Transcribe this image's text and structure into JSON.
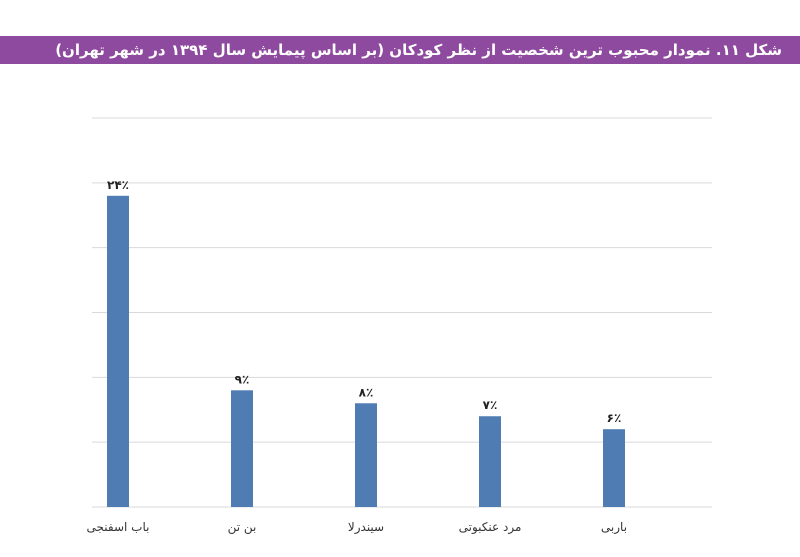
{
  "title": "شکل ۱۱. نمودار محبوب ترین شخصیت از نظر کودکان (بر اساس پیمایش سال ۱۳۹۴ در شهر تهران)",
  "colors": {
    "title_bar": "#8e4a9e",
    "bar": "#4f7cb3",
    "grid": "#d9d9d9"
  },
  "chart_data": {
    "type": "bar",
    "categories": [
      "باب اسفنجی",
      "بن تن",
      "سیندرلا",
      "مرد عنکبوتی",
      "باربی"
    ],
    "values": [
      24,
      9,
      8,
      7,
      6
    ],
    "data_labels": [
      "۲۴٪",
      "۹٪",
      "۸٪",
      "۷٪",
      "۶٪"
    ],
    "ylim": [
      0,
      30
    ],
    "y_grid_step": 5,
    "grid": true,
    "xlabel": "",
    "ylabel": ""
  }
}
